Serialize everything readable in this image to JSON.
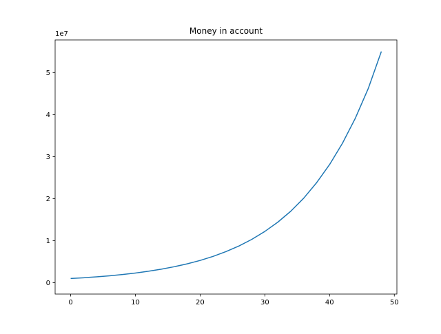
{
  "chart_data": {
    "type": "line",
    "title": "Money in account",
    "xlabel": "",
    "ylabel": "",
    "y_offset_label": "1e7",
    "xlim": [
      -2.4,
      50.4
    ],
    "ylim": [
      -2.7,
      57.75
    ],
    "grid": false,
    "xticks": [
      0,
      10,
      20,
      30,
      40,
      50
    ],
    "yticks": [
      0,
      1,
      2,
      3,
      4,
      5
    ],
    "series": [
      {
        "color": "#1f77b4",
        "x": [
          0,
          2,
          4,
          6,
          8,
          10,
          12,
          14,
          16,
          18,
          20,
          22,
          24,
          26,
          28,
          30,
          32,
          34,
          36,
          38,
          40,
          42,
          44,
          46,
          48
        ],
        "y": [
          1.0,
          1.18,
          1.4,
          1.65,
          1.95,
          2.3,
          2.72,
          3.21,
          3.8,
          4.49,
          5.3,
          6.26,
          7.4,
          8.74,
          10.32,
          12.2,
          14.4,
          17.0,
          20.1,
          23.8,
          28.1,
          33.2,
          39.2,
          46.3,
          55.0
        ]
      }
    ]
  }
}
